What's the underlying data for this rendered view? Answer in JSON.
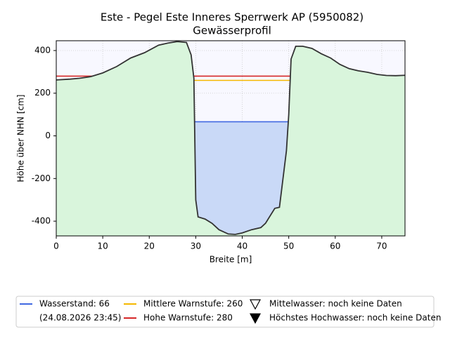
{
  "chart_data": {
    "type": "profile",
    "title": "Este - Pegel Este Inneres Sperrwerk AP (5950082)",
    "subtitle": "Gewässerprofil",
    "xlabel": "Breite [m]",
    "ylabel": "Höhe über NHN [cm]",
    "xlim": [
      0,
      75
    ],
    "ylim": [
      -469,
      446
    ],
    "xticks": [
      0,
      10,
      20,
      30,
      40,
      50,
      60,
      70
    ],
    "yticks": [
      -400,
      -200,
      0,
      200,
      400
    ],
    "grid": true,
    "profile": {
      "color": "#333333",
      "fill": "#d9f5dc",
      "x": [
        0,
        3,
        5,
        7.5,
        10,
        13,
        16,
        19,
        22,
        24,
        26,
        28,
        29,
        29.6,
        30,
        30.5,
        32,
        33.5,
        35,
        37,
        38.5,
        40,
        42,
        44,
        45,
        47,
        48,
        49.5,
        50,
        50.5,
        51.5,
        53,
        55,
        57,
        59,
        61,
        63,
        65,
        67,
        69,
        71,
        73,
        75
      ],
      "y": [
        262,
        266,
        270,
        278,
        295,
        325,
        365,
        390,
        425,
        435,
        442,
        438,
        380,
        270,
        -300,
        -380,
        -390,
        -410,
        -440,
        -460,
        -462,
        -455,
        -440,
        -430,
        -410,
        -340,
        -335,
        -70,
        100,
        360,
        420,
        420,
        410,
        385,
        365,
        335,
        315,
        305,
        298,
        288,
        283,
        282,
        284
      ]
    },
    "levels": [
      {
        "name": "Wasserstand: 66",
        "timestamp": "(24.08.2026 23:45)",
        "value": 66,
        "color": "#4169e1",
        "fill": "#c9d9f7"
      },
      {
        "name": "Mittlere Warnstufe: 260",
        "value": 260,
        "color": "#f5b800"
      },
      {
        "name": "Hohe Warnstufe: 280",
        "value": 280,
        "color": "#d62728"
      }
    ],
    "markers": [
      {
        "name": "Mittelwasser: noch keine Daten",
        "marker": "open"
      },
      {
        "name": "Höchstes Hochwasser: noch keine Daten",
        "marker": "filled"
      }
    ]
  }
}
